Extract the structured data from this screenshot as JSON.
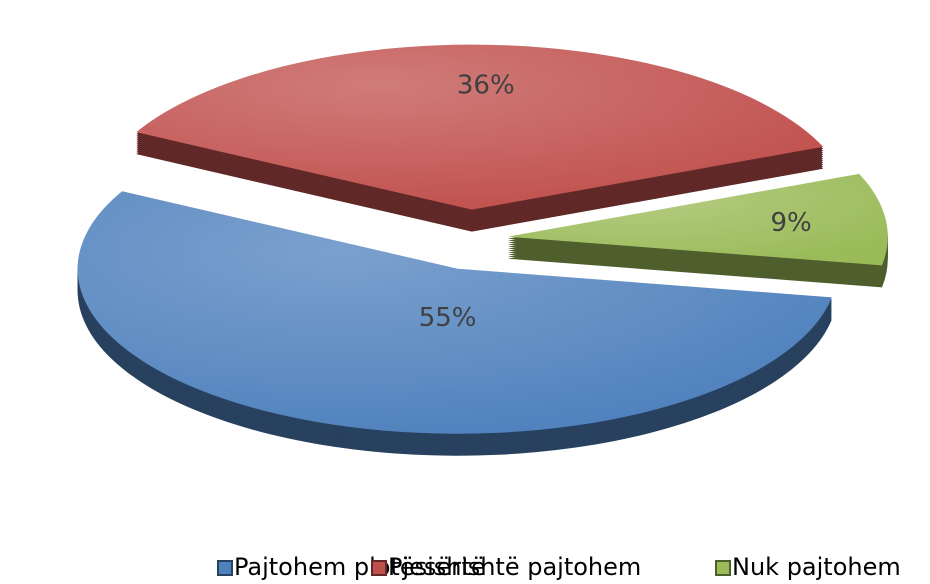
{
  "chart_data": {
    "type": "pie",
    "categories": [
      "Pajtohem plotësishtë",
      "Pjesërishtë pajtohem",
      "Nuk pajtohem"
    ],
    "values": [
      55,
      36,
      9
    ],
    "value_labels": [
      "55%",
      "36%",
      "9%"
    ],
    "colors": [
      "#4f81bd",
      "#c0504d",
      "#9bbb59"
    ],
    "legend": "bottom"
  }
}
